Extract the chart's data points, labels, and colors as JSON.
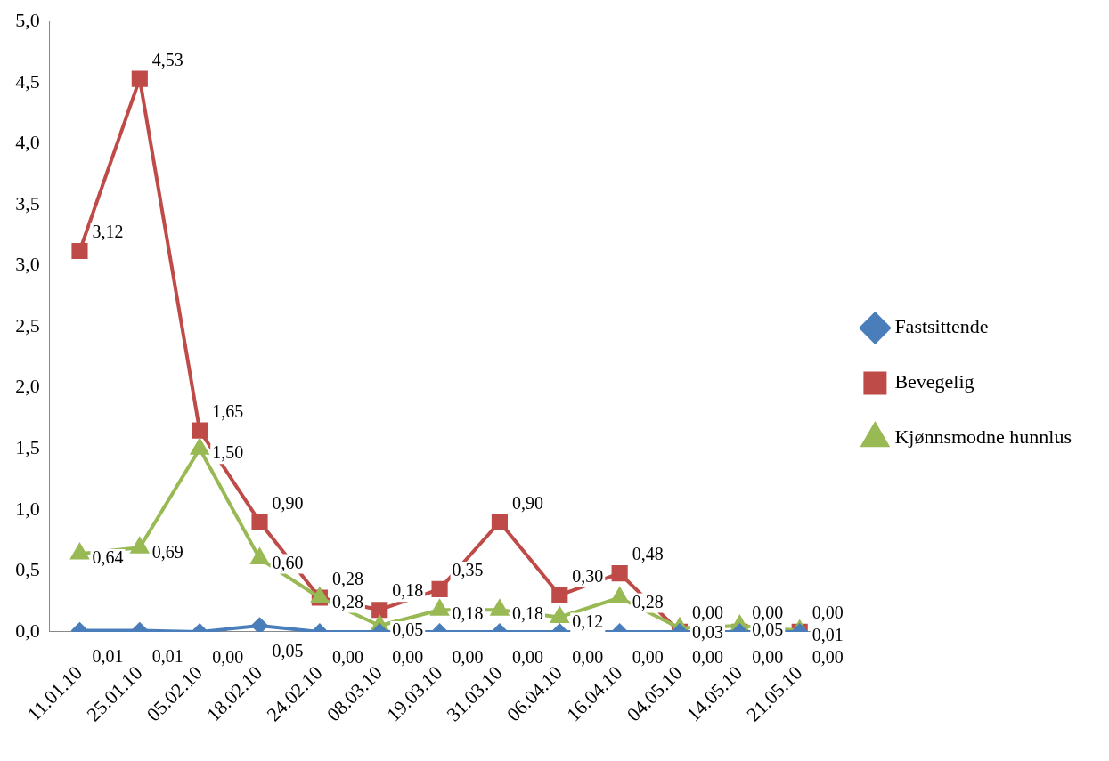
{
  "chart_data": {
    "type": "line",
    "categories": [
      "11.01.10",
      "25.01.10",
      "05.02.10",
      "18.02.10",
      "24.02.10",
      "08.03.10",
      "19.03.10",
      "31.03.10",
      "06.04.10",
      "16.04.10",
      "04.05.10",
      "14.05.10",
      "21.05.10"
    ],
    "series": [
      {
        "name": "Fastsittende",
        "color": "#4a7ebb",
        "marker": "diamond",
        "values": [
          0.01,
          0.01,
          0.0,
          0.05,
          0.0,
          0.0,
          0.0,
          0.0,
          0.0,
          0.0,
          0.0,
          0.0,
          0.0
        ],
        "value_labels": [
          "0,01",
          "0,01",
          "0,00",
          "0,05",
          "0,00",
          "0,00",
          "0,00",
          "0,00",
          "0,00",
          "0,00",
          "0,00",
          "0,00",
          "0,00"
        ]
      },
      {
        "name": "Bevegelig",
        "color": "#be4b48",
        "marker": "square",
        "values": [
          3.12,
          4.53,
          1.65,
          0.9,
          0.28,
          0.18,
          0.35,
          0.9,
          0.3,
          0.48,
          0.0,
          0.0,
          0.0
        ],
        "value_labels": [
          "3,12",
          "4,53",
          "1,65",
          "0,90",
          "0,28",
          "0,18",
          "0,35",
          "0,90",
          "0,30",
          "0,48",
          "0,00",
          "0,00",
          "0,00"
        ]
      },
      {
        "name": "Kjønnsmodne hunnlus",
        "color": "#98b954",
        "marker": "triangle",
        "values": [
          0.64,
          0.69,
          1.5,
          0.6,
          0.28,
          0.05,
          0.18,
          0.18,
          0.12,
          0.28,
          0.03,
          0.05,
          0.01
        ],
        "value_labels": [
          "0,64",
          "0,69",
          "1,50",
          "0,60",
          "0,28",
          "0,05",
          "0,18",
          "0,18",
          "0,12",
          "0,28",
          "0,03",
          "0,05",
          "0,01"
        ]
      }
    ],
    "ylim": [
      0,
      5
    ],
    "yticks": [
      {
        "value": 0,
        "label": "0,0"
      },
      {
        "value": 0.5,
        "label": "0,5"
      },
      {
        "value": 1,
        "label": "1,0"
      },
      {
        "value": 1.5,
        "label": "1,5"
      },
      {
        "value": 2,
        "label": "2,0"
      },
      {
        "value": 2.5,
        "label": "2,5"
      },
      {
        "value": 3,
        "label": "3,0"
      },
      {
        "value": 3.5,
        "label": "3,5"
      },
      {
        "value": 4,
        "label": "4,0"
      },
      {
        "value": 4.5,
        "label": "4,5"
      },
      {
        "value": 5,
        "label": "5,0"
      }
    ],
    "grid": false,
    "legend": "right",
    "line_style": "solid"
  }
}
